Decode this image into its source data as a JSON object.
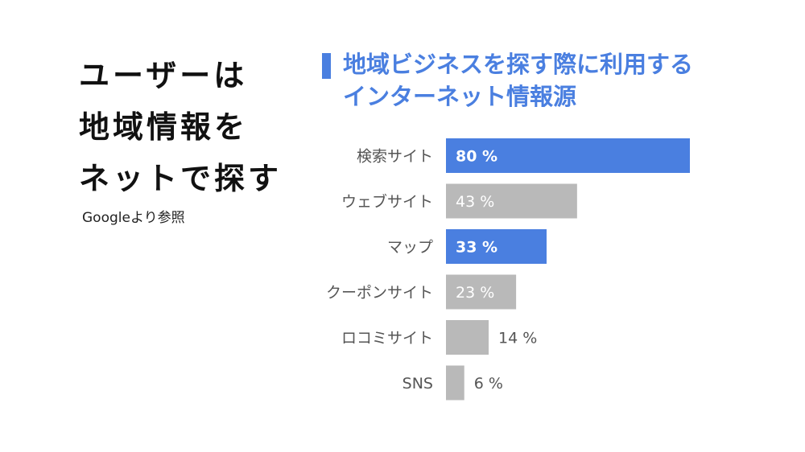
{
  "headline": {
    "lines": [
      "ユーザーは",
      "地域情報を",
      "ネットで探す"
    ]
  },
  "source": "Googleより参照",
  "chart_data": {
    "type": "bar",
    "orientation": "horizontal",
    "title_lines": [
      "地域ビジネスを探す際に利用する",
      "インターネット情報源"
    ],
    "categories": [
      "検索サイト",
      "ウェブサイト",
      "マップ",
      "クーポンサイト",
      "ロコミサイト",
      "SNS"
    ],
    "values": [
      80,
      43,
      33,
      23,
      14,
      6
    ],
    "value_labels": [
      "80 %",
      "43 %",
      "33 %",
      "23 %",
      "14 %",
      "6 %"
    ],
    "highlighted": [
      true,
      false,
      true,
      false,
      false,
      false
    ],
    "xlim": [
      0,
      80
    ],
    "grid": false,
    "colors": {
      "highlight": "#4a7fe0",
      "normal": "#b9b9b9",
      "label_inside": "#ffffff",
      "label_outside": "#555555",
      "category": "#555555"
    }
  }
}
